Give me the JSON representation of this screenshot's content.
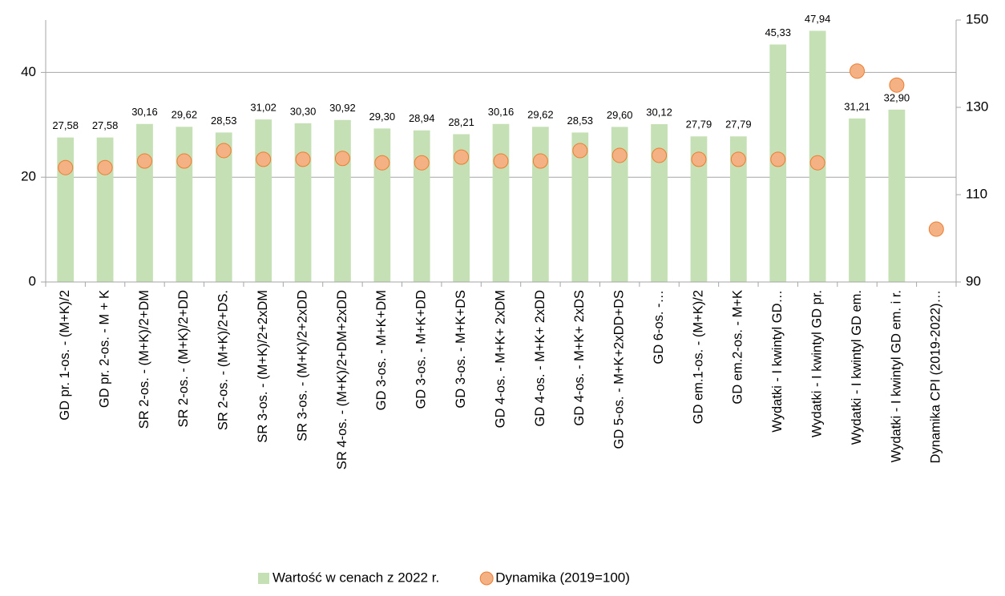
{
  "chart_data": {
    "type": "bar+scatter",
    "categories": [
      "GD pr. 1-os. - (M+K)/2",
      "GD pr. 2-os. - M + K",
      "SR 2-os. - (M+K)/2+DM",
      "SR 2-os. - (M+K)/2+DD",
      "SR 2-os. - (M+K)/2+DS.",
      "SR 3-os. - (M+K)/2+2xDM",
      "SR 3-os. - (M+K)/2+2xDD",
      "SR 4-os. - (M+K)/2+DM+2xDD",
      "GD 3-os. - M+K+DM",
      "GD 3-os. - M+K+DD",
      "GD 3-os. - M+K+DS",
      "GD 4-os. - M+K+ 2xDM",
      "GD 4-os. - M+K+ 2xDD",
      "GD 4-os. - M+K+ 2xDS",
      "GD 5-os. - M+K+2xDD+DS",
      "GD 6-os. -…",
      "GD em.1-os. - (M+K)/2",
      "GD em.2-os. - M+K",
      "Wydatki - I kwintyl GD…",
      "Wydatki - I kwintyl GD pr.",
      "Wydatki - I kwintyl GD em.",
      "Wydatki - I kwintyl GD em. i r.",
      "Dynamika CPI (2019-2022)…"
    ],
    "series": [
      {
        "name": "Wartość w cenach z 2022 r.",
        "type": "bar",
        "color": "#c5e0b4",
        "values": [
          27.58,
          27.58,
          30.16,
          29.62,
          28.53,
          31.02,
          30.3,
          30.92,
          29.3,
          28.94,
          28.21,
          30.16,
          29.62,
          28.53,
          29.6,
          30.12,
          27.79,
          27.79,
          45.33,
          47.94,
          31.21,
          32.9,
          null
        ],
        "value_labels": [
          "27,58",
          "27,58",
          "30,16",
          "29,62",
          "28,53",
          "31,02",
          "30,30",
          "30,92",
          "29,30",
          "28,94",
          "28,21",
          "30,16",
          "29,62",
          "28,53",
          "29,60",
          "30,12",
          "27,79",
          "27,79",
          "45,33",
          "47,94",
          "31,21",
          "32,90",
          null
        ]
      },
      {
        "name": "Dynamika (2019=100)",
        "type": "scatter",
        "axis": "y2",
        "color": "#f4b183",
        "edge_color": "#ed7d31",
        "values": [
          116.2,
          116.2,
          117.7,
          117.7,
          120.1,
          118.1,
          118.1,
          118.3,
          117.3,
          117.3,
          118.6,
          117.7,
          117.7,
          120.1,
          119.0,
          119.0,
          118.1,
          118.1,
          118.1,
          117.3,
          138.3,
          135.1,
          102.1
        ]
      }
    ],
    "ylim": [
      0,
      50
    ],
    "yticks": [
      0,
      20,
      40
    ],
    "y2lim": [
      90,
      150
    ],
    "y2ticks": [
      90,
      110,
      130,
      150
    ],
    "grid": true,
    "legend": "bottom"
  }
}
